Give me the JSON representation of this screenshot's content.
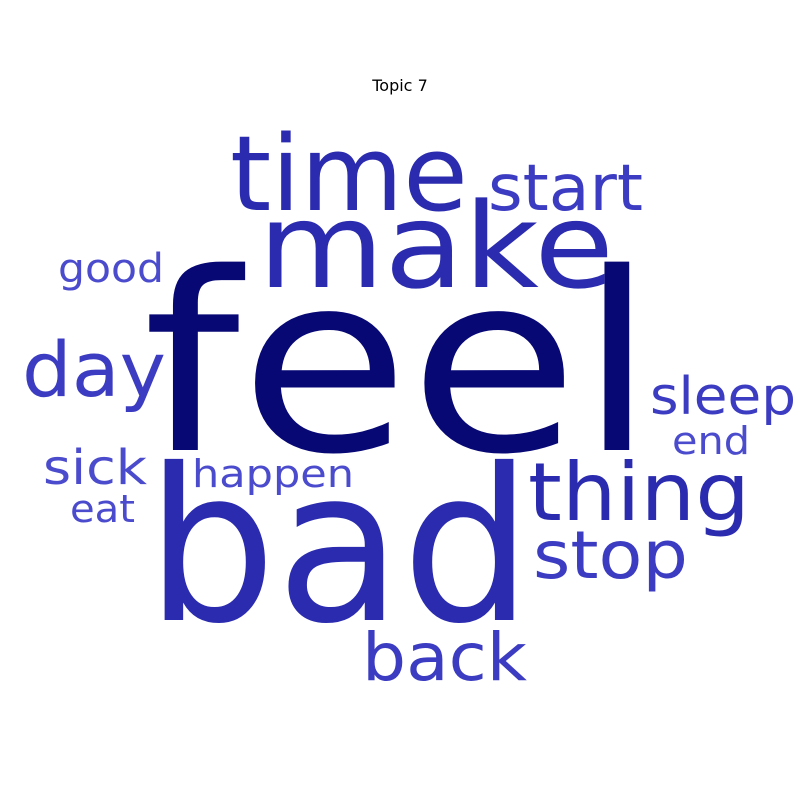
{
  "title": "Topic 7",
  "colors": {
    "navy": "#080875",
    "dark_blue": "#2b2baf",
    "medium_blue": "#3c3cc2",
    "light_blue": "#4b4bcd"
  },
  "words": [
    {
      "text": "feel",
      "color": "#080875"
    },
    {
      "text": "bad",
      "color": "#2b2baf"
    },
    {
      "text": "make",
      "color": "#2b2baf"
    },
    {
      "text": "time",
      "color": "#2b2baf"
    },
    {
      "text": "thing",
      "color": "#2b2baf"
    },
    {
      "text": "start",
      "color": "#3c3cc2"
    },
    {
      "text": "day",
      "color": "#3c3cc2"
    },
    {
      "text": "stop",
      "color": "#3c3cc2"
    },
    {
      "text": "back",
      "color": "#3c3cc2"
    },
    {
      "text": "sleep",
      "color": "#3c3cc2"
    },
    {
      "text": "sick",
      "color": "#4b4bcd"
    },
    {
      "text": "happen",
      "color": "#4b4bcd"
    },
    {
      "text": "good",
      "color": "#4b4bcd"
    },
    {
      "text": "end",
      "color": "#4b4bcd"
    },
    {
      "text": "eat",
      "color": "#4b4bcd"
    }
  ]
}
